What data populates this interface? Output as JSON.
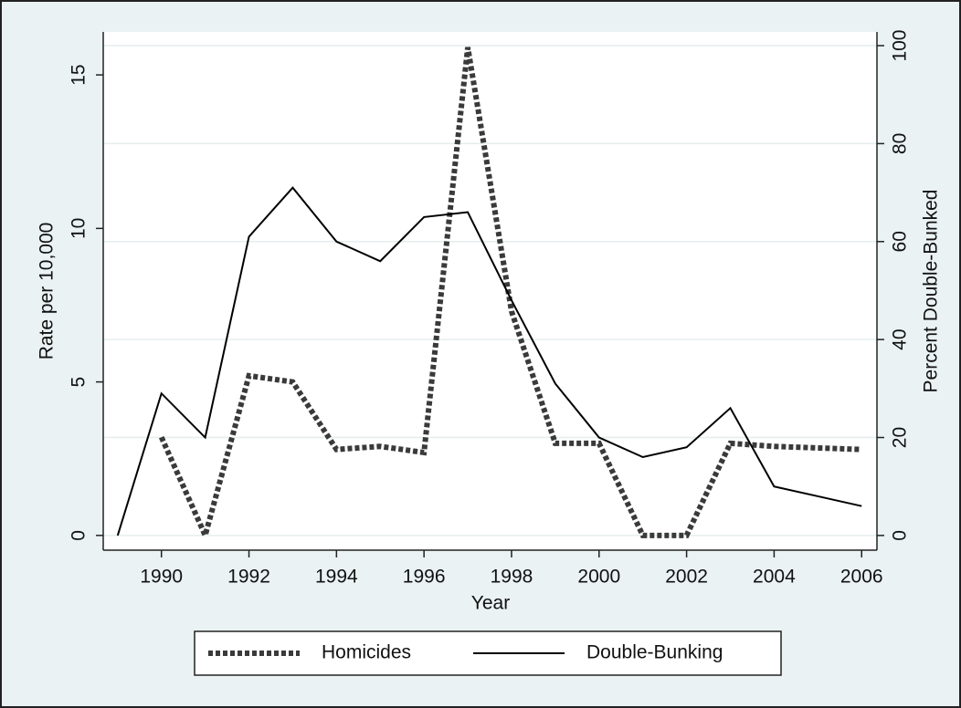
{
  "chart_data": {
    "type": "line",
    "x": [
      1989,
      1990,
      1991,
      1992,
      1993,
      1994,
      1995,
      1996,
      1997,
      1998,
      1999,
      2000,
      2001,
      2002,
      2003,
      2004,
      2005,
      2006
    ],
    "series": [
      {
        "name": "Homicides",
        "color": "#3a3a3a",
        "axis": "y",
        "values": [
          null,
          3.2,
          0,
          5.2,
          5.0,
          2.8,
          2.9,
          2.7,
          15.9,
          7.3,
          3.0,
          3.0,
          0,
          0,
          3.0,
          2.9,
          2.85,
          2.8
        ]
      },
      {
        "name": "Double-Bunking",
        "color": "#000000",
        "axis": "y2",
        "values": [
          0,
          29,
          20,
          61,
          71,
          60,
          56,
          65,
          66,
          48,
          31,
          20,
          16,
          18,
          26,
          10,
          8,
          6
        ]
      }
    ],
    "xlabel": "Year",
    "ylabel": "Rate per 10,000",
    "y2label": "Percent Double-Bunked",
    "xlim": [
      1988.67,
      2006.35
    ],
    "xticks": [
      1990,
      1992,
      1994,
      1996,
      1998,
      2000,
      2002,
      2004,
      2006
    ],
    "ylim": [
      -0.48,
      16.4
    ],
    "yticks": [
      0,
      5,
      10,
      15
    ],
    "y2lim": [
      -3,
      102.8
    ],
    "y2ticks": [
      0,
      20,
      40,
      60,
      80,
      100
    ],
    "grid": true,
    "legend": "bottom"
  }
}
